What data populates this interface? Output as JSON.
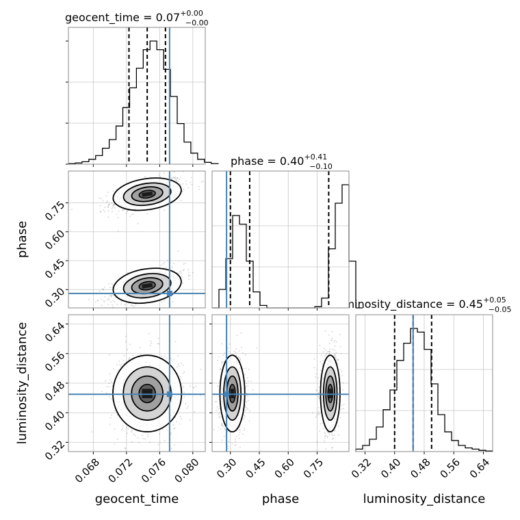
{
  "chart_data": {
    "type": "corner",
    "truth_color": "#4682b4",
    "parameters": [
      {
        "name": "geocent_time",
        "xlabel": "geocent_time",
        "range": [
          0.065,
          0.0815
        ],
        "ticks": [
          0.068,
          0.072,
          0.076,
          0.08
        ],
        "tick_labels": [
          "0.068",
          "0.072",
          "0.076",
          "0.080"
        ],
        "truth": 0.0772,
        "title": "geocent_time = 0.07",
        "title_sup": "+0.00",
        "title_sub": "−0.00",
        "quantiles": [
          0.0723,
          0.0745,
          0.0767
        ],
        "hist_edges_start": 0.065,
        "hist_bin_width": 0.00082,
        "hist_counts": [
          0.5,
          1,
          2,
          4,
          7,
          13,
          20,
          31,
          46,
          62,
          78,
          93,
          100,
          93,
          77,
          55,
          33,
          18,
          9,
          4,
          1.5,
          0.5
        ]
      },
      {
        "name": "phase",
        "xlabel": "phase",
        "ylabel": "phase",
        "range": [
          0.205,
          0.915
        ],
        "ticks": [
          0.3,
          0.45,
          0.6,
          0.75
        ],
        "tick_labels": [
          "0.30",
          "0.45",
          "0.60",
          "0.75"
        ],
        "truth": 0.28,
        "title": "phase = 0.40",
        "title_sup": "+0.41",
        "title_sub": "−0.10",
        "quantiles": [
          0.3,
          0.4,
          0.81
        ],
        "hist_edges_start": 0.205,
        "hist_bin_width": 0.0355,
        "hist_counts": [
          0,
          15,
          40,
          75,
          68,
          38,
          13,
          2,
          0,
          0,
          0,
          0,
          0,
          0,
          0,
          1,
          8,
          48,
          85,
          100,
          38,
          0
        ]
      },
      {
        "name": "luminosity_distance",
        "xlabel": "luminosity_distance",
        "ylabel": "luminosity_distance",
        "range": [
          0.295,
          0.665
        ],
        "ticks": [
          0.32,
          0.4,
          0.48,
          0.56,
          0.64
        ],
        "tick_labels": [
          "0.32",
          "0.40",
          "0.48",
          "0.56",
          "0.64"
        ],
        "truth": 0.45,
        "title": "luminosity_distance = 0.45",
        "title_sup": "+0.05",
        "title_sub": "−0.05",
        "quantiles": [
          0.4,
          0.45,
          0.5
        ],
        "hist_edges_start": 0.295,
        "hist_bin_width": 0.0185,
        "hist_counts": [
          2,
          5,
          10,
          20,
          34,
          50,
          74,
          88,
          100,
          97,
          83,
          55,
          30,
          16,
          9,
          5,
          3,
          2,
          1,
          0.5
        ]
      }
    ],
    "blobs_2d": [
      {
        "pair": [
          "geocent_time",
          "phase"
        ],
        "cx": 0.0745,
        "cy": 0.795,
        "sx": 0.0018,
        "sy": 0.035,
        "rho": 0.55
      },
      {
        "pair": [
          "geocent_time",
          "phase"
        ],
        "cx": 0.0745,
        "cy": 0.32,
        "sx": 0.0018,
        "sy": 0.038,
        "rho": 0.55
      },
      {
        "pair": [
          "geocent_time",
          "luminosity_distance"
        ],
        "cx": 0.0745,
        "cy": 0.452,
        "sx": 0.0018,
        "sy": 0.045,
        "rho": 0.0
      },
      {
        "pair": [
          "phase",
          "luminosity_distance"
        ],
        "cx": 0.31,
        "cy": 0.452,
        "sx": 0.028,
        "sy": 0.045,
        "rho": 0.0
      },
      {
        "pair": [
          "phase",
          "luminosity_distance"
        ],
        "cx": 0.818,
        "cy": 0.452,
        "sx": 0.022,
        "sy": 0.045,
        "rho": 0.0
      }
    ]
  }
}
